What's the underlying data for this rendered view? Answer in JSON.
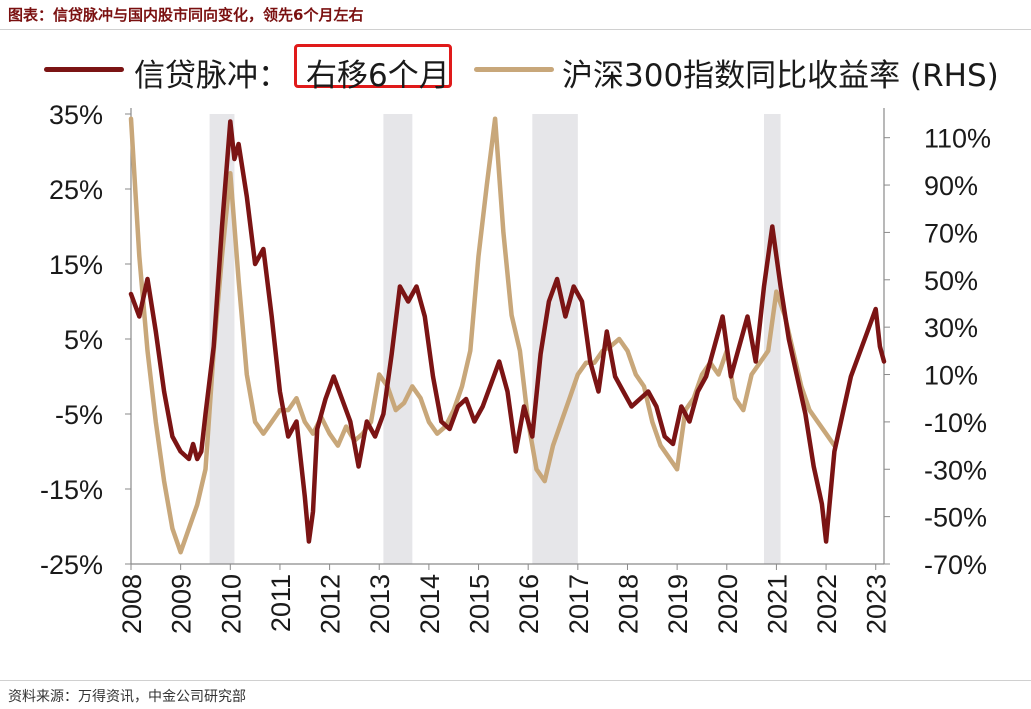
{
  "header": {
    "title": "图表：信贷脉冲与国内股市同向变化，领先6个月左右"
  },
  "legend": {
    "series1_label_prefix": "信贷脉冲：",
    "series1_label_boxed": "右移6个月",
    "series2_label": "沪深300指数同比收益率 (RHS)"
  },
  "footer": {
    "source": "资料来源：万得资讯，中金公司研究部"
  },
  "colors": {
    "series1": "#7b1414",
    "series2": "#c8a77a",
    "shade": "#e6e6e9",
    "highlight_box": "#e01a1a",
    "title": "#7a1010"
  },
  "chart_data": {
    "type": "line",
    "title": "",
    "xlabel": "",
    "ylabel": "",
    "y2label": "",
    "grid": false,
    "legend_position": "top",
    "x_tick_labels": [
      "2008",
      "2009",
      "2010",
      "2011",
      "2012",
      "2013",
      "2014",
      "2015",
      "2016",
      "2017",
      "2018",
      "2019",
      "2020",
      "2021",
      "2022",
      "2023"
    ],
    "y_tick_labels": [
      "35%",
      "25%",
      "15%",
      "5%",
      "-5%",
      "-15%",
      "-25%"
    ],
    "y2_tick_labels": [
      "110%",
      "90%",
      "70%",
      "50%",
      "30%",
      "10%",
      "-10%",
      "-30%",
      "-50%",
      "-70%"
    ],
    "ylim": [
      -25,
      35
    ],
    "y2lim": [
      -70,
      120
    ],
    "xlim": [
      "2008-01",
      "2023-03"
    ],
    "shaded_periods": [
      {
        "start": "2009-08",
        "end": "2010-02"
      },
      {
        "start": "2013-02",
        "end": "2013-09"
      },
      {
        "start": "2016-02",
        "end": "2017-01"
      },
      {
        "start": "2020-10",
        "end": "2021-02"
      }
    ],
    "series": [
      {
        "name": "信贷脉冲：右移6个月",
        "axis": "left",
        "points": [
          [
            "2008-01",
            11
          ],
          [
            "2008-03",
            8
          ],
          [
            "2008-05",
            13
          ],
          [
            "2008-07",
            6
          ],
          [
            "2008-09",
            -2
          ],
          [
            "2008-11",
            -8
          ],
          [
            "2009-01",
            -10
          ],
          [
            "2009-03",
            -11
          ],
          [
            "2009-04",
            -9
          ],
          [
            "2009-05",
            -11
          ],
          [
            "2009-06",
            -10
          ],
          [
            "2009-07",
            -5
          ],
          [
            "2009-09",
            4
          ],
          [
            "2009-11",
            20
          ],
          [
            "2010-01",
            34
          ],
          [
            "2010-02",
            29
          ],
          [
            "2010-03",
            31
          ],
          [
            "2010-05",
            24
          ],
          [
            "2010-07",
            15
          ],
          [
            "2010-09",
            17
          ],
          [
            "2010-11",
            8
          ],
          [
            "2011-01",
            -2
          ],
          [
            "2011-03",
            -8
          ],
          [
            "2011-05",
            -6
          ],
          [
            "2011-07",
            -16
          ],
          [
            "2011-08",
            -22
          ],
          [
            "2011-09",
            -18
          ],
          [
            "2011-10",
            -7
          ],
          [
            "2011-12",
            -3
          ],
          [
            "2012-02",
            0
          ],
          [
            "2012-04",
            -3
          ],
          [
            "2012-06",
            -6
          ],
          [
            "2012-08",
            -12
          ],
          [
            "2012-10",
            -6
          ],
          [
            "2012-12",
            -8
          ],
          [
            "2013-02",
            -5
          ],
          [
            "2013-04",
            3
          ],
          [
            "2013-06",
            12
          ],
          [
            "2013-08",
            10
          ],
          [
            "2013-10",
            12
          ],
          [
            "2013-12",
            8
          ],
          [
            "2014-02",
            0
          ],
          [
            "2014-04",
            -6
          ],
          [
            "2014-06",
            -7
          ],
          [
            "2014-08",
            -4
          ],
          [
            "2014-10",
            -3
          ],
          [
            "2014-12",
            -6
          ],
          [
            "2015-02",
            -4
          ],
          [
            "2015-04",
            -1
          ],
          [
            "2015-06",
            2
          ],
          [
            "2015-08",
            -2
          ],
          [
            "2015-10",
            -10
          ],
          [
            "2015-12",
            -4
          ],
          [
            "2016-02",
            -8
          ],
          [
            "2016-04",
            3
          ],
          [
            "2016-06",
            10
          ],
          [
            "2016-08",
            13
          ],
          [
            "2016-10",
            8
          ],
          [
            "2016-12",
            12
          ],
          [
            "2017-02",
            10
          ],
          [
            "2017-04",
            2
          ],
          [
            "2017-06",
            -2
          ],
          [
            "2017-08",
            6
          ],
          [
            "2017-10",
            0
          ],
          [
            "2017-12",
            -2
          ],
          [
            "2018-02",
            -4
          ],
          [
            "2018-04",
            -3
          ],
          [
            "2018-06",
            -2
          ],
          [
            "2018-08",
            -4
          ],
          [
            "2018-10",
            -8
          ],
          [
            "2018-12",
            -9
          ],
          [
            "2019-02",
            -4
          ],
          [
            "2019-04",
            -6
          ],
          [
            "2019-06",
            -2
          ],
          [
            "2019-08",
            0
          ],
          [
            "2019-10",
            4
          ],
          [
            "2019-12",
            8
          ],
          [
            "2020-02",
            0
          ],
          [
            "2020-04",
            4
          ],
          [
            "2020-06",
            8
          ],
          [
            "2020-08",
            2
          ],
          [
            "2020-10",
            12
          ],
          [
            "2020-12",
            20
          ],
          [
            "2021-02",
            12
          ],
          [
            "2021-04",
            5
          ],
          [
            "2021-06",
            0
          ],
          [
            "2021-08",
            -5
          ],
          [
            "2021-10",
            -12
          ],
          [
            "2021-12",
            -17
          ],
          [
            "2022-01",
            -22
          ],
          [
            "2022-03",
            -10
          ],
          [
            "2022-05",
            -5
          ],
          [
            "2022-07",
            0
          ],
          [
            "2022-09",
            3
          ],
          [
            "2022-11",
            6
          ],
          [
            "2023-01",
            9
          ],
          [
            "2023-02",
            4
          ],
          [
            "2023-03",
            2
          ]
        ]
      },
      {
        "name": "沪深300指数同比收益率 (RHS)",
        "axis": "right",
        "points": [
          [
            "2008-01",
            118
          ],
          [
            "2008-03",
            60
          ],
          [
            "2008-05",
            20
          ],
          [
            "2008-07",
            -10
          ],
          [
            "2008-09",
            -35
          ],
          [
            "2008-11",
            -55
          ],
          [
            "2009-01",
            -65
          ],
          [
            "2009-03",
            -55
          ],
          [
            "2009-05",
            -45
          ],
          [
            "2009-07",
            -30
          ],
          [
            "2009-09",
            20
          ],
          [
            "2009-11",
            60
          ],
          [
            "2010-01",
            95
          ],
          [
            "2010-03",
            50
          ],
          [
            "2010-05",
            10
          ],
          [
            "2010-07",
            -10
          ],
          [
            "2010-09",
            -15
          ],
          [
            "2010-11",
            -10
          ],
          [
            "2011-01",
            -5
          ],
          [
            "2011-03",
            -5
          ],
          [
            "2011-05",
            0
          ],
          [
            "2011-07",
            -10
          ],
          [
            "2011-09",
            -15
          ],
          [
            "2011-11",
            -8
          ],
          [
            "2012-01",
            -15
          ],
          [
            "2012-03",
            -20
          ],
          [
            "2012-05",
            -12
          ],
          [
            "2012-07",
            -18
          ],
          [
            "2012-09",
            -15
          ],
          [
            "2012-11",
            -10
          ],
          [
            "2013-01",
            10
          ],
          [
            "2013-03",
            5
          ],
          [
            "2013-05",
            -5
          ],
          [
            "2013-07",
            -2
          ],
          [
            "2013-09",
            5
          ],
          [
            "2013-11",
            0
          ],
          [
            "2014-01",
            -10
          ],
          [
            "2014-03",
            -15
          ],
          [
            "2014-05",
            -12
          ],
          [
            "2014-07",
            -5
          ],
          [
            "2014-09",
            5
          ],
          [
            "2014-11",
            20
          ],
          [
            "2015-01",
            60
          ],
          [
            "2015-03",
            90
          ],
          [
            "2015-05",
            118
          ],
          [
            "2015-07",
            70
          ],
          [
            "2015-09",
            35
          ],
          [
            "2015-11",
            20
          ],
          [
            "2016-01",
            -10
          ],
          [
            "2016-03",
            -30
          ],
          [
            "2016-05",
            -35
          ],
          [
            "2016-07",
            -20
          ],
          [
            "2016-09",
            -10
          ],
          [
            "2016-11",
            0
          ],
          [
            "2017-01",
            10
          ],
          [
            "2017-03",
            15
          ],
          [
            "2017-05",
            15
          ],
          [
            "2017-07",
            20
          ],
          [
            "2017-09",
            22
          ],
          [
            "2017-11",
            25
          ],
          [
            "2018-01",
            20
          ],
          [
            "2018-03",
            10
          ],
          [
            "2018-05",
            5
          ],
          [
            "2018-07",
            -10
          ],
          [
            "2018-09",
            -20
          ],
          [
            "2018-11",
            -25
          ],
          [
            "2019-01",
            -30
          ],
          [
            "2019-03",
            -5
          ],
          [
            "2019-05",
            0
          ],
          [
            "2019-07",
            10
          ],
          [
            "2019-09",
            15
          ],
          [
            "2019-11",
            10
          ],
          [
            "2020-01",
            20
          ],
          [
            "2020-03",
            0
          ],
          [
            "2020-05",
            -5
          ],
          [
            "2020-07",
            10
          ],
          [
            "2020-09",
            15
          ],
          [
            "2020-11",
            20
          ],
          [
            "2021-01",
            45
          ],
          [
            "2021-03",
            35
          ],
          [
            "2021-05",
            20
          ],
          [
            "2021-07",
            5
          ],
          [
            "2021-09",
            -5
          ],
          [
            "2021-11",
            -10
          ],
          [
            "2022-01",
            -15
          ],
          [
            "2022-03",
            -20
          ]
        ]
      }
    ]
  }
}
